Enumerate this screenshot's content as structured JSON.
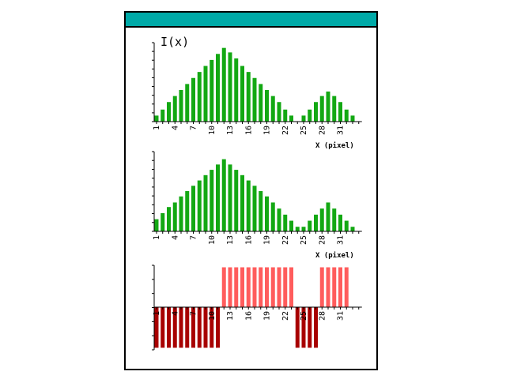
{
  "window": {
    "title": ""
  },
  "colors": {
    "green": "#13a813",
    "pink": "#ff5c5c",
    "darkred": "#a80000",
    "titlebar": "#00aaa8",
    "axis": "#000000"
  },
  "chart_data": [
    {
      "type": "bar",
      "ylabel": "I(x)",
      "xlabel": "X (pixel)",
      "x": [
        1,
        2,
        3,
        4,
        5,
        6,
        7,
        8,
        9,
        10,
        11,
        12,
        13,
        14,
        15,
        16,
        17,
        18,
        19,
        20,
        21,
        22,
        23,
        24,
        25,
        26,
        27,
        28,
        29,
        30,
        31,
        32,
        33,
        34
      ],
      "xticks": [
        "1",
        "4",
        "7",
        "10",
        "13",
        "16",
        "19",
        "22",
        "25",
        "28",
        "31"
      ],
      "values": [
        0.08,
        0.16,
        0.26,
        0.34,
        0.42,
        0.5,
        0.58,
        0.66,
        0.74,
        0.82,
        0.9,
        0.98,
        0.92,
        0.84,
        0.74,
        0.66,
        0.58,
        0.5,
        0.42,
        0.34,
        0.26,
        0.16,
        0.08,
        0,
        0.08,
        0.16,
        0.26,
        0.34,
        0.4,
        0.34,
        0.26,
        0.16,
        0.08,
        0
      ],
      "ylim": [
        0,
        1.05
      ]
    },
    {
      "type": "bar",
      "xlabel": "X (pixel)",
      "x": [
        1,
        2,
        3,
        4,
        5,
        6,
        7,
        8,
        9,
        10,
        11,
        12,
        13,
        14,
        15,
        16,
        17,
        18,
        19,
        20,
        21,
        22,
        23,
        24,
        25,
        26,
        27,
        28,
        29,
        30,
        31,
        32,
        33,
        34
      ],
      "xticks": [
        "1",
        "4",
        "7",
        "10",
        "13",
        "16",
        "19",
        "22",
        "25",
        "28",
        "31"
      ],
      "values": [
        0.16,
        0.24,
        0.32,
        0.38,
        0.46,
        0.53,
        0.6,
        0.67,
        0.74,
        0.81,
        0.88,
        0.95,
        0.88,
        0.81,
        0.74,
        0.67,
        0.6,
        0.53,
        0.46,
        0.38,
        0.3,
        0.22,
        0.14,
        0.06,
        0.06,
        0.14,
        0.22,
        0.3,
        0.38,
        0.3,
        0.22,
        0.14,
        0.06,
        0
      ],
      "ylim": [
        0,
        1.05
      ]
    },
    {
      "type": "bar",
      "x": [
        1,
        2,
        3,
        4,
        5,
        6,
        7,
        8,
        9,
        10,
        11,
        12,
        13,
        14,
        15,
        16,
        17,
        18,
        19,
        20,
        21,
        22,
        23,
        24,
        25,
        26,
        27,
        28,
        29,
        30,
        31,
        32,
        33,
        34
      ],
      "xticks": [
        "1",
        "4",
        "7",
        "10",
        "13",
        "16",
        "19",
        "22",
        "25",
        "28",
        "31"
      ],
      "values": [
        -1,
        -1,
        -1,
        -1,
        -1,
        -1,
        -1,
        -1,
        -1,
        -1,
        -1,
        1,
        1,
        1,
        1,
        1,
        1,
        1,
        1,
        1,
        1,
        1,
        1,
        -1,
        -1,
        -1,
        -1,
        1,
        1,
        1,
        1,
        1,
        0,
        0
      ],
      "ylim": [
        -1.05,
        1.05
      ]
    }
  ]
}
